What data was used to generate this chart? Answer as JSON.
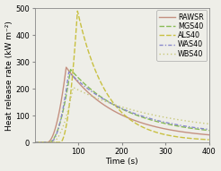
{
  "title": "",
  "xlabel": "Time (s)",
  "ylabel": "Heat release rate (kW m⁻²)",
  "xlim": [
    0,
    400
  ],
  "ylim": [
    0,
    500
  ],
  "xticks": [
    100,
    200,
    300,
    400
  ],
  "yticks": [
    0,
    100,
    200,
    300,
    400,
    500
  ],
  "series": [
    {
      "name": "RAWSR",
      "color": "#c49080",
      "linestyle": "solid",
      "linewidth": 1.0,
      "peak_x": 72,
      "peak_y": 280,
      "rise_start": 28,
      "decay_rate": 2.8,
      "tail_y": 12
    },
    {
      "name": "MGS40",
      "color": "#88bb55",
      "linestyle": "dashed",
      "linewidth": 1.0,
      "peak_x": 82,
      "peak_y": 272,
      "rise_start": 32,
      "decay_rate": 2.4,
      "tail_y": 22
    },
    {
      "name": "ALS40",
      "color": "#c8c040",
      "linestyle": "dashed",
      "linewidth": 1.0,
      "peak_x": 98,
      "peak_y": 490,
      "rise_start": 58,
      "decay_rate": 4.5,
      "tail_y": 5
    },
    {
      "name": "WAS40",
      "color": "#8888cc",
      "linestyle": "dashed",
      "linewidth": 1.0,
      "peak_x": 78,
      "peak_y": 262,
      "rise_start": 35,
      "decay_rate": 2.2,
      "tail_y": 22
    },
    {
      "name": "WBS40",
      "color": "#c8c878",
      "linestyle": "dotted",
      "linewidth": 1.0,
      "peak_x": 88,
      "peak_y": 205,
      "rise_start": 38,
      "decay_rate": 1.5,
      "tail_y": 30
    }
  ],
  "background_color": "#eeeee8",
  "plot_bg_color": "#eeeee8",
  "legend_fontsize": 5.8,
  "axis_fontsize": 6.5,
  "tick_fontsize": 6.0
}
